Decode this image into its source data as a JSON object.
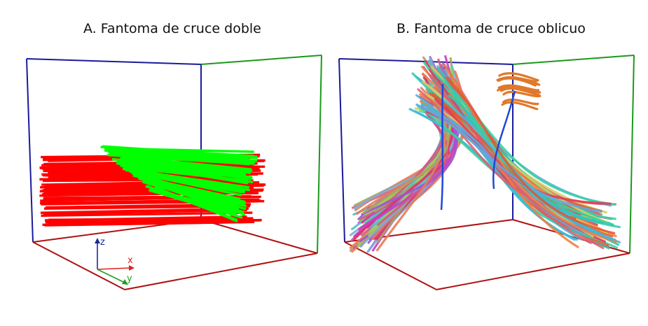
{
  "panels": [
    {
      "id": "A",
      "title": "A. Fantoma de cruce doble",
      "phantom": "double crossing",
      "fiber_bundles": [
        {
          "color": "#ff0000",
          "direction": "x"
        },
        {
          "color": "#00ff00",
          "direction": "y"
        }
      ]
    },
    {
      "id": "B",
      "title": "B. Fantoma de cruce oblicuo",
      "phantom": "oblique crossing",
      "coloring": "direction-encoded RGB"
    }
  ],
  "axes_gizmo": {
    "x": "x",
    "y": "y",
    "z": "z",
    "colors": {
      "x": "#e02020",
      "y": "#20a020",
      "z": "#1a2a9a"
    }
  },
  "box_edge_colors": {
    "x": "#b01010",
    "y": "#1a9a1a",
    "z": "#1a1a9a"
  }
}
